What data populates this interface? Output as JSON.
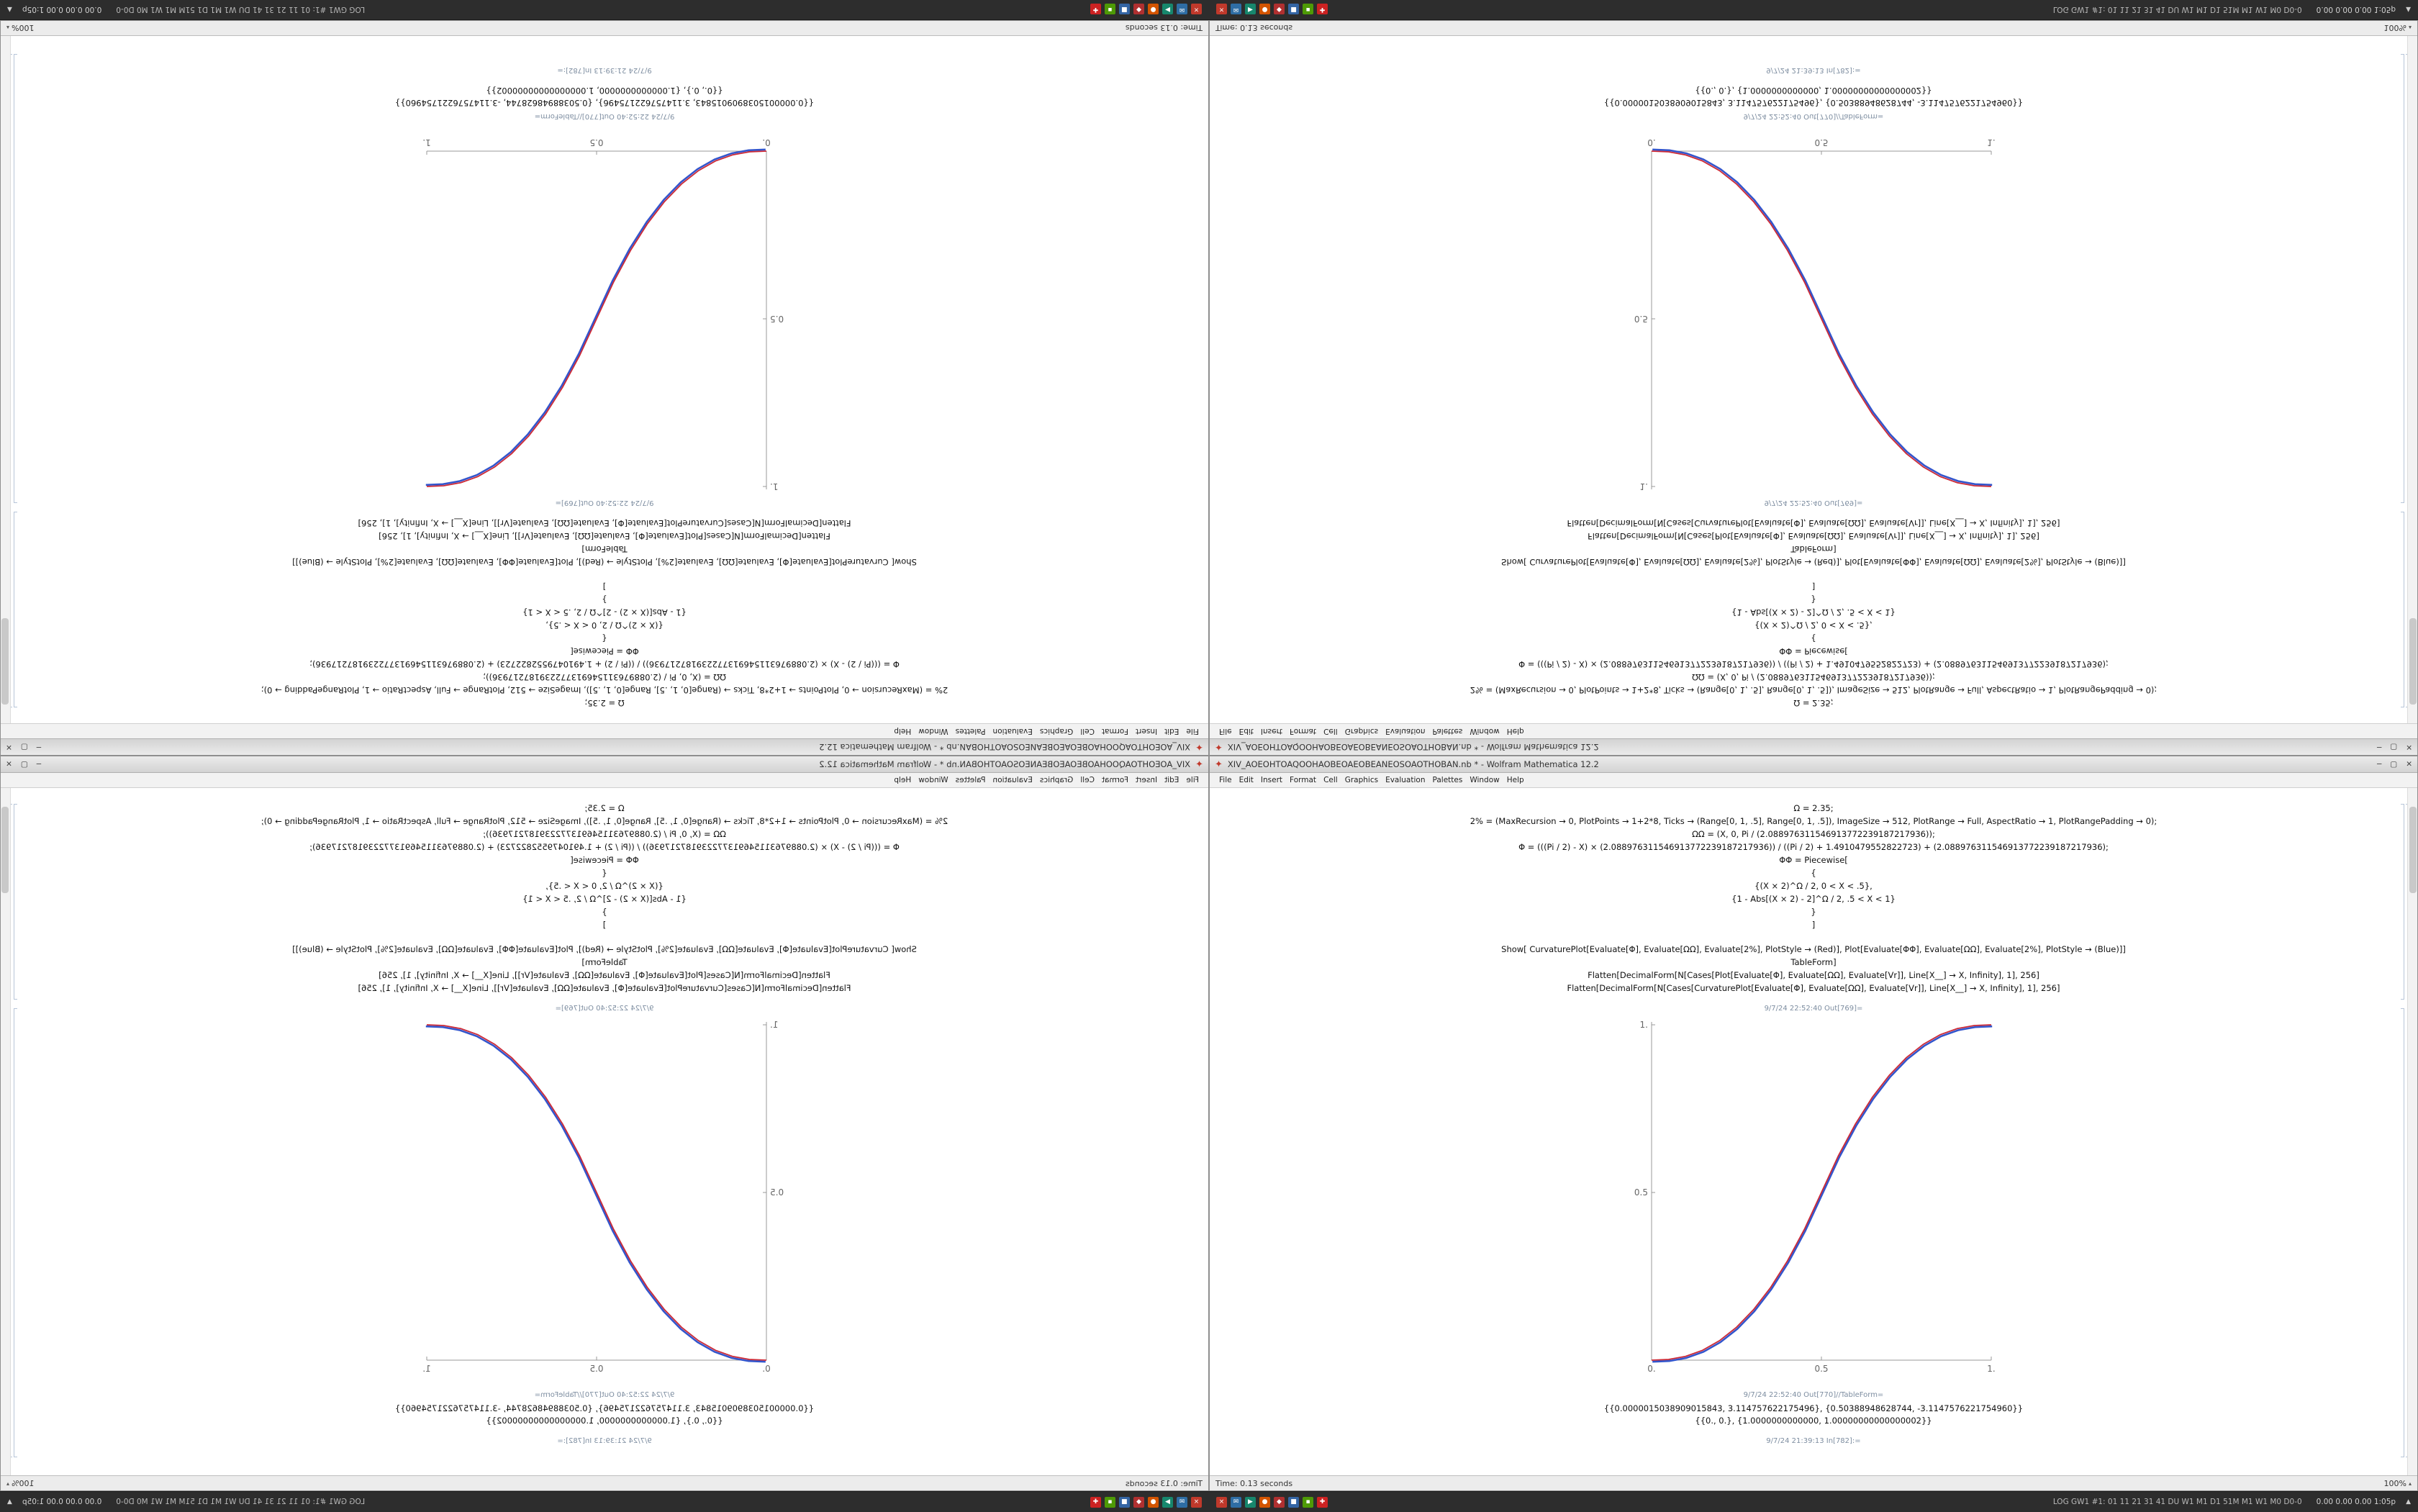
{
  "app": {
    "name": "Wolfram Mathematica",
    "version": "12.2"
  },
  "desktop": {
    "window": {
      "title": "XIV_AOEOHTOAQOOHAOBEOAEOBEANEOSOAOTHOBAN.nb * - Wolfram Mathematica 12.2",
      "controls": {
        "minimize": "─",
        "maximize": "▢",
        "close": "✕"
      },
      "menu": [
        "File",
        "Edit",
        "Insert",
        "Format",
        "Cell",
        "Graphics",
        "Evaluation",
        "Palettes",
        "Window",
        "Help"
      ],
      "status_left": "Time: 0.13 seconds",
      "zoom": "100%",
      "cells": [
        {
          "type": "code",
          "text": "Ω = 2.35;"
        },
        {
          "type": "code",
          "text": "2% = (MaxRecursion → 0, PlotPoints → 1+2*8, Ticks → (Range[0, 1, .5], Range[0, 1, .5]), ImageSize → 512, PlotRange → Full, AspectRatio → 1, PlotRangePadding → 0);"
        },
        {
          "type": "code",
          "text": "ΩΩ = (X, 0, Pi / (2.088976311546913772239187217936));"
        },
        {
          "type": "code",
          "text": "Φ = (((Pi / 2) - X) × (2.088976311546913772239187217936)) / ((Pi / 2) + 1.4910479552822723) + (2.088976311546913772239187217936);"
        },
        {
          "type": "code",
          "text": "ΦΦ = Piecewise["
        },
        {
          "type": "code",
          "text": "{"
        },
        {
          "type": "code",
          "text": "{(X × 2)^Ω / 2, 0 < X < .5},"
        },
        {
          "type": "code",
          "text": "{1 - Abs[(X × 2) - 2]^Ω / 2, .5 < X < 1}"
        },
        {
          "type": "code",
          "text": "}"
        },
        {
          "type": "code",
          "text": "]"
        },
        {
          "type": "spacer"
        },
        {
          "type": "code",
          "text": "Show[ CurvaturePlot[Evaluate[Φ], Evaluate[ΩΩ], Evaluate[2%], PlotStyle → (Red)], Plot[Evaluate[ΦΦ], Evaluate[ΩΩ], Evaluate[2%], PlotStyle → (Blue)]]"
        },
        {
          "type": "code",
          "text": "TableForm]"
        },
        {
          "type": "code",
          "text": "Flatten[DecimalForm[N[Cases[Plot[Evaluate[Φ], Evaluate[ΩΩ], Evaluate[Vr]], Line[X__] → X, Infinity], 1], 256]"
        },
        {
          "type": "code",
          "text": "Flatten[DecimalForm[N[Cases[CurvaturePlot[Evaluate[Φ], Evaluate[ΩΩ], Evaluate[Vr]], Line[X__] → X, Infinity], 1], 256]"
        },
        {
          "type": "label",
          "text": "9/7/24 22:52:40 Out[769]="
        },
        {
          "type": "plot"
        },
        {
          "type": "label",
          "text": "9/7/24 22:52:40 Out[770]//TableForm="
        },
        {
          "type": "nums",
          "text": "{{0.0000015038909015843, 3.114757622175496}, {0.50388948628744, -3.1147576221754960}}"
        },
        {
          "type": "nums",
          "text": "{{0., 0.}, {1.0000000000000, 1.00000000000000002}}"
        },
        {
          "type": "label",
          "text": "9/7/24 21:39:13 In[782]:="
        }
      ]
    },
    "taskbar": {
      "tasklist": "LOG GW1 #1: 01 11 21 31 41 DU W1 M1 D1 51M M1 W1 M0 D0-0",
      "stats": "0.00 0.00 0.00 1:05p",
      "caret": "▲",
      "tray": [
        {
          "name": "tray-icon-red-cross",
          "color": "#c0392b",
          "glyph": "×"
        },
        {
          "name": "tray-icon-blue-mail",
          "color": "#2e6da4",
          "glyph": "✉"
        },
        {
          "name": "tray-icon-teal-play",
          "color": "#17876d",
          "glyph": "▶"
        },
        {
          "name": "tray-icon-orange-dot",
          "color": "#d35400",
          "glyph": "●"
        },
        {
          "name": "tray-icon-red-diamond",
          "color": "#b03030",
          "glyph": "◆"
        },
        {
          "name": "tray-icon-blue-square",
          "color": "#3465a4",
          "glyph": "■"
        },
        {
          "name": "tray-icon-green-badge",
          "color": "#4e9a06",
          "glyph": "▪"
        },
        {
          "name": "tray-icon-red-plus",
          "color": "#cc2222",
          "glyph": "✚"
        }
      ]
    }
  },
  "chart_data": {
    "type": "line",
    "title": "",
    "xlabel": "",
    "ylabel": "",
    "grid": false,
    "legend": null,
    "x_range": [
      0,
      1
    ],
    "y_range": [
      0,
      1
    ],
    "x_ticks": [
      "0.",
      "0.5",
      "1."
    ],
    "x_tick_vals": [
      0,
      0.5,
      1
    ],
    "y_ticks": [
      "0.5",
      "1."
    ],
    "y_tick_vals": [
      0.5,
      1
    ],
    "series": [
      {
        "name": "CurvaturePlot Φ (Red)",
        "color": "#cc2936"
      },
      {
        "name": "Plot ΦΦ (Blue)",
        "color": "#3355cc"
      }
    ],
    "x": [
      0,
      0.05,
      0.1,
      0.15,
      0.2,
      0.25,
      0.3,
      0.35,
      0.4,
      0.45,
      0.5,
      0.55,
      0.6,
      0.65,
      0.7,
      0.75,
      0.8,
      0.85,
      0.9,
      0.95,
      1
    ],
    "y": [
      0,
      0.0022,
      0.0114,
      0.0295,
      0.0581,
      0.098,
      0.1505,
      0.2162,
      0.296,
      0.3903,
      0.5,
      0.6097,
      0.704,
      0.7838,
      0.8495,
      0.902,
      0.9419,
      0.9705,
      0.9886,
      0.9978,
      1
    ],
    "note": "Both series overlap: piecewise smoothstep warp (2x)^2.35/2 mirrored at x=0.5; window duplicates are CSS mirror/flip transforms of this same plot."
  },
  "colors": {
    "curve_red": "#cc2936",
    "curve_blue": "#3355cc",
    "taskbar_bg": "#2d2d2d",
    "titlebar_bg": "#d9d9d9",
    "spikey_red": "#c0392b",
    "axis_gray": "#999999",
    "label_blue_gray": "#7d8da0"
  }
}
